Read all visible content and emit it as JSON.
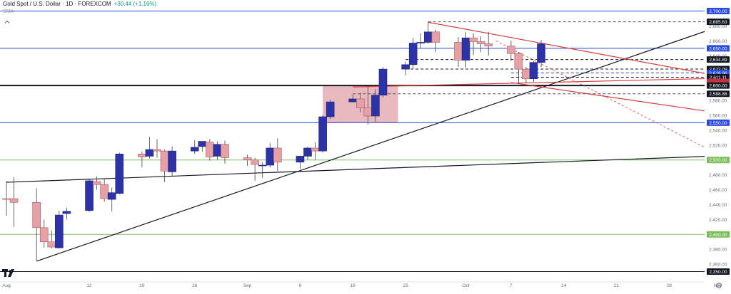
{
  "header": {
    "symbol": "Gold Spot / U.S. Dollar · 1D · FOREXCOM",
    "change": "+30.44 (+1.16%)",
    "indicator": "SMA"
  },
  "colors": {
    "up": "#2b33a6",
    "down": "#e5a1a5",
    "blue_level": "#2b4ae0",
    "green_level": "#7cbf5a",
    "trend_black": "#131722",
    "trend_red": "#d83c3c",
    "zone": "#d98a92"
  },
  "icons": [
    "collapse-chevron-icon",
    "tradingview-logo-icon"
  ],
  "chart_data": {
    "type": "candlestick",
    "title": "Gold Spot / U.S. Dollar · 1D · FOREXCOM",
    "ylim": [
      2340,
      2712
    ],
    "y_ticks": [
      2360,
      2380,
      2420,
      2440,
      2460,
      2480,
      2520,
      2540,
      2560,
      2580,
      2620,
      2640,
      2660,
      2680
    ],
    "x_ticks": [
      "Aug",
      "12",
      "19",
      "26",
      "Sep",
      "9",
      "16",
      "23",
      "Oct",
      "7",
      "14",
      "21",
      "28",
      "Nov"
    ],
    "x_tick_dates": [
      "2024-08-01",
      "2024-08-12",
      "2024-08-19",
      "2024-08-26",
      "2024-09-02",
      "2024-09-09",
      "2024-09-16",
      "2024-09-23",
      "2024-10-01",
      "2024-10-07",
      "2024-10-14",
      "2024-10-21",
      "2024-10-28",
      "2024-11-04"
    ],
    "level_labels": [
      {
        "value": 2700,
        "label": "2,700.00",
        "style": "blue"
      },
      {
        "value": 2685.63,
        "label": "2,685.63",
        "style": "dark"
      },
      {
        "value": 2650,
        "label": "2,650.00",
        "style": "blue"
      },
      {
        "value": 2634.89,
        "label": "2,634.89",
        "style": "dark"
      },
      {
        "value": 2622.09,
        "label": "2,622.09",
        "style": "dark"
      },
      {
        "value": 2616.96,
        "label": "2,616.96",
        "style": "blue"
      },
      {
        "value": 2611.11,
        "label": "2,611.11",
        "style": "dark"
      },
      {
        "value": 2604.82,
        "label": "2,604.82",
        "style": "red"
      },
      {
        "value": 2602.57,
        "label": "2,602.57",
        "style": "red"
      },
      {
        "value": 2600,
        "label": "2,600.00",
        "style": "dark"
      },
      {
        "value": 2588.88,
        "label": "2,588.88",
        "style": "dark"
      },
      {
        "value": 2550,
        "label": "2,550.00",
        "style": "blue"
      },
      {
        "value": 2500,
        "label": "2,500.00",
        "style": "green"
      },
      {
        "value": 2400,
        "label": "2,400.00",
        "style": "green"
      },
      {
        "value": 2350,
        "label": "2,350.00",
        "style": "dark"
      }
    ],
    "horizontal_lines": [
      {
        "value": 2700,
        "style": "blue"
      },
      {
        "value": 2650,
        "style": "blue"
      },
      {
        "value": 2550,
        "style": "blue"
      },
      {
        "value": 2500,
        "style": "green"
      },
      {
        "value": 2400,
        "style": "green"
      },
      {
        "value": 2350,
        "style": "black"
      },
      {
        "value": 2600,
        "style": "black-thick"
      }
    ],
    "dashed_levels": [
      {
        "value": 2685.63,
        "from": "2024-09-26",
        "color": "#555555"
      },
      {
        "value": 2634.89,
        "from": "2024-09-23",
        "color": "#131722"
      },
      {
        "value": 2622.09,
        "from": "2024-09-23",
        "color": "#131722"
      },
      {
        "value": 2616.96,
        "from": "2024-10-07",
        "color": "#2b4ae0"
      },
      {
        "value": 2611.11,
        "from": "2024-10-07",
        "color": "#131722"
      },
      {
        "value": 2588.88,
        "from": "2024-09-16",
        "color": "#555555"
      }
    ],
    "zone": {
      "from": "2024-09-12",
      "to": "2024-09-22",
      "y_from": 2550,
      "y_to": 2600
    },
    "trendlines": [
      {
        "color": "black",
        "points": [
          [
            "2024-08-05",
            2364
          ],
          [
            "2024-11-05",
            2684
          ]
        ]
      },
      {
        "color": "black",
        "points": [
          [
            "2024-08-01",
            2470
          ],
          [
            "2024-11-05",
            2506
          ]
        ]
      },
      {
        "color": "red",
        "points": [
          [
            "2024-09-26",
            2685
          ],
          [
            "2024-11-05",
            2610
          ]
        ]
      },
      {
        "color": "red",
        "points": [
          [
            "2024-10-07",
            2604
          ],
          [
            "2024-11-05",
            2561
          ]
        ]
      },
      {
        "color": "red",
        "points": [
          [
            "2024-09-16",
            2598
          ],
          [
            "2024-11-05",
            2610
          ]
        ]
      },
      {
        "color": "red-dashed",
        "points": [
          [
            "2024-10-05",
            2660
          ],
          [
            "2024-11-05",
            2500
          ]
        ]
      }
    ],
    "candles": [
      {
        "date": "2024-08-01",
        "o": 2448,
        "h": 2472,
        "l": 2425,
        "c": 2447
      },
      {
        "date": "2024-08-02",
        "o": 2448,
        "h": 2477,
        "l": 2410,
        "c": 2443
      },
      {
        "date": "2024-08-05",
        "o": 2443,
        "h": 2462,
        "l": 2364,
        "c": 2409
      },
      {
        "date": "2024-08-06",
        "o": 2409,
        "h": 2420,
        "l": 2382,
        "c": 2390
      },
      {
        "date": "2024-08-07",
        "o": 2390,
        "h": 2405,
        "l": 2381,
        "c": 2383
      },
      {
        "date": "2024-08-08",
        "o": 2382,
        "h": 2432,
        "l": 2381,
        "c": 2426
      },
      {
        "date": "2024-08-09",
        "o": 2428,
        "h": 2436,
        "l": 2420,
        "c": 2431
      },
      {
        "date": "2024-08-12",
        "o": 2432,
        "h": 2474,
        "l": 2430,
        "c": 2472
      },
      {
        "date": "2024-08-13",
        "o": 2471,
        "h": 2478,
        "l": 2460,
        "c": 2467
      },
      {
        "date": "2024-08-14",
        "o": 2467,
        "h": 2474,
        "l": 2444,
        "c": 2448
      },
      {
        "date": "2024-08-15",
        "o": 2447,
        "h": 2463,
        "l": 2431,
        "c": 2456
      },
      {
        "date": "2024-08-16",
        "o": 2455,
        "h": 2510,
        "l": 2454,
        "c": 2508
      },
      {
        "date": "2024-08-19",
        "o": 2508,
        "h": 2511,
        "l": 2490,
        "c": 2504
      },
      {
        "date": "2024-08-20",
        "o": 2505,
        "h": 2531,
        "l": 2502,
        "c": 2514
      },
      {
        "date": "2024-08-21",
        "o": 2514,
        "h": 2528,
        "l": 2503,
        "c": 2512
      },
      {
        "date": "2024-08-22",
        "o": 2512,
        "h": 2514,
        "l": 2470,
        "c": 2485
      },
      {
        "date": "2024-08-23",
        "o": 2484,
        "h": 2518,
        "l": 2478,
        "c": 2512
      },
      {
        "date": "2024-08-26",
        "o": 2512,
        "h": 2527,
        "l": 2508,
        "c": 2517
      },
      {
        "date": "2024-08-27",
        "o": 2518,
        "h": 2525,
        "l": 2511,
        "c": 2525
      },
      {
        "date": "2024-08-28",
        "o": 2524,
        "h": 2528,
        "l": 2499,
        "c": 2504
      },
      {
        "date": "2024-08-29",
        "o": 2505,
        "h": 2525,
        "l": 2500,
        "c": 2521
      },
      {
        "date": "2024-08-30",
        "o": 2521,
        "h": 2526,
        "l": 2495,
        "c": 2503
      },
      {
        "date": "2024-09-02",
        "o": 2503,
        "h": 2507,
        "l": 2492,
        "c": 2500
      },
      {
        "date": "2024-09-03",
        "o": 2500,
        "h": 2503,
        "l": 2472,
        "c": 2494
      },
      {
        "date": "2024-09-04",
        "o": 2493,
        "h": 2497,
        "l": 2476,
        "c": 2493
      },
      {
        "date": "2024-09-05",
        "o": 2493,
        "h": 2523,
        "l": 2490,
        "c": 2516
      },
      {
        "date": "2024-09-06",
        "o": 2516,
        "h": 2529,
        "l": 2485,
        "c": 2497
      },
      {
        "date": "2024-09-09",
        "o": 2497,
        "h": 2506,
        "l": 2488,
        "c": 2505
      },
      {
        "date": "2024-09-10",
        "o": 2505,
        "h": 2518,
        "l": 2500,
        "c": 2516
      },
      {
        "date": "2024-09-11",
        "o": 2516,
        "h": 2524,
        "l": 2500,
        "c": 2512
      },
      {
        "date": "2024-09-12",
        "o": 2512,
        "h": 2560,
        "l": 2510,
        "c": 2558
      },
      {
        "date": "2024-09-13",
        "o": 2558,
        "h": 2581,
        "l": 2555,
        "c": 2578
      },
      {
        "date": "2024-09-16",
        "o": 2578,
        "h": 2588,
        "l": 2577,
        "c": 2582
      },
      {
        "date": "2024-09-17",
        "o": 2582,
        "h": 2590,
        "l": 2564,
        "c": 2570
      },
      {
        "date": "2024-09-18",
        "o": 2570,
        "h": 2600,
        "l": 2547,
        "c": 2559
      },
      {
        "date": "2024-09-19",
        "o": 2559,
        "h": 2595,
        "l": 2551,
        "c": 2587
      },
      {
        "date": "2024-09-20",
        "o": 2587,
        "h": 2625,
        "l": 2584,
        "c": 2622
      },
      {
        "date": "2024-09-23",
        "o": 2622,
        "h": 2632,
        "l": 2614,
        "c": 2628
      },
      {
        "date": "2024-09-24",
        "o": 2628,
        "h": 2664,
        "l": 2622,
        "c": 2657
      },
      {
        "date": "2024-09-25",
        "o": 2657,
        "h": 2670,
        "l": 2650,
        "c": 2658
      },
      {
        "date": "2024-09-26",
        "o": 2658,
        "h": 2685,
        "l": 2656,
        "c": 2672
      },
      {
        "date": "2024-09-27",
        "o": 2672,
        "h": 2675,
        "l": 2645,
        "c": 2658
      },
      {
        "date": "2024-09-30",
        "o": 2658,
        "h": 2665,
        "l": 2625,
        "c": 2634
      },
      {
        "date": "2024-10-01",
        "o": 2634,
        "h": 2672,
        "l": 2624,
        "c": 2664
      },
      {
        "date": "2024-10-02",
        "o": 2664,
        "h": 2670,
        "l": 2641,
        "c": 2659
      },
      {
        "date": "2024-10-03",
        "o": 2659,
        "h": 2666,
        "l": 2645,
        "c": 2656
      },
      {
        "date": "2024-10-04",
        "o": 2656,
        "h": 2672,
        "l": 2640,
        "c": 2653
      },
      {
        "date": "2024-10-07",
        "o": 2653,
        "h": 2660,
        "l": 2633,
        "c": 2643
      },
      {
        "date": "2024-10-08",
        "o": 2643,
        "h": 2645,
        "l": 2603,
        "c": 2622
      },
      {
        "date": "2024-10-09",
        "o": 2622,
        "h": 2625,
        "l": 2603,
        "c": 2609
      },
      {
        "date": "2024-10-10",
        "o": 2609,
        "h": 2633,
        "l": 2605,
        "c": 2631
      },
      {
        "date": "2024-10-11",
        "o": 2631,
        "h": 2661,
        "l": 2625,
        "c": 2656
      }
    ]
  }
}
